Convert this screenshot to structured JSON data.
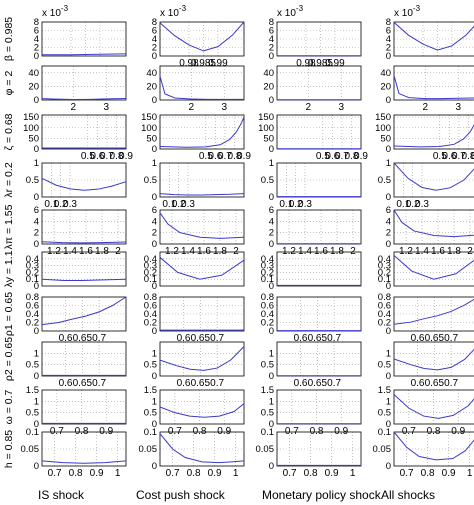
{
  "chart_data": {
    "type": "line",
    "grid": true,
    "line_color": "#3a3acc",
    "columns": [
      "IS shock",
      "Cost push shock",
      "Monetary policy shock",
      "All shocks"
    ],
    "exponent_label": "x 10",
    "exponent_power": "-3",
    "rows": [
      {
        "label": "β = 0.985",
        "x": [
          0.97,
          0.999
        ],
        "ylim": [
          0,
          8
        ],
        "yticks": [
          "0",
          "2",
          "4",
          "6",
          "8"
        ],
        "xticks": [
          "0.98",
          "0.985",
          "0.99"
        ],
        "xtick_values": [
          0.98,
          0.985,
          0.99
        ],
        "exponent_columns": [
          0,
          1,
          2,
          3
        ],
        "xticks_columns": [
          1,
          2
        ],
        "series": [
          {
            "x": [
              0.97,
              0.98,
              0.99,
              0.999
            ],
            "values": [
              0.3,
              0.3,
              0.4,
              0.5
            ]
          },
          {
            "x": [
              0.97,
              0.975,
              0.98,
              0.985,
              0.99,
              0.995,
              0.999
            ],
            "values": [
              7.8,
              4.8,
              2.6,
              1.2,
              2.2,
              4.9,
              8.0
            ]
          },
          {
            "x": [
              0.97,
              0.999
            ],
            "values": [
              0.05,
              0.05
            ]
          },
          {
            "x": [
              0.97,
              0.975,
              0.98,
              0.985,
              0.99,
              0.995,
              0.999
            ],
            "values": [
              7.9,
              4.9,
              2.8,
              1.4,
              2.4,
              5.0,
              8.0
            ]
          }
        ]
      },
      {
        "label": "φ = 2",
        "x": [
          1.05,
          3.6
        ],
        "ylim": [
          0,
          50
        ],
        "yticks": [
          "0",
          "20",
          "40"
        ],
        "xticks": [
          "1",
          "2",
          "3"
        ],
        "xtick_values": [
          1,
          2,
          3
        ],
        "xticks_columns": [
          0,
          1,
          2,
          3
        ],
        "series": [
          {
            "x": [
              1.05,
              1.5,
              2,
              2.5,
              3,
              3.6
            ],
            "values": [
              2,
              1.2,
              0.8,
              1,
              1.6,
              2.2
            ]
          },
          {
            "x": [
              1.05,
              1.2,
              1.5,
              2,
              2.5,
              3,
              3.6
            ],
            "values": [
              35,
              9,
              3,
              1.5,
              1,
              1,
              1
            ]
          },
          {
            "x": [
              1.05,
              3.6
            ],
            "values": [
              0.3,
              0.3
            ]
          },
          {
            "x": [
              1.05,
              1.2,
              1.5,
              2,
              2.5,
              3,
              3.6
            ],
            "values": [
              36,
              9.5,
              3.5,
              2,
              2,
              2.5,
              3
            ]
          }
        ]
      },
      {
        "label": "ζ = 0.68",
        "x": [
          0.02,
          0.9
        ],
        "ylim": [
          0,
          160
        ],
        "yticks": [
          "0",
          "50",
          "100",
          "150"
        ],
        "xticks": [
          "0.5",
          "0.6",
          "0.7",
          "0.8",
          "0.9"
        ],
        "xtick_values": [
          0.5,
          0.6,
          0.7,
          0.8,
          0.9
        ],
        "xticks_columns": [
          0,
          1,
          2,
          3
        ],
        "series": [
          {
            "x": [
              0.02,
              0.9
            ],
            "values": [
              5,
              5
            ]
          },
          {
            "x": [
              0.02,
              0.3,
              0.5,
              0.65,
              0.75,
              0.82,
              0.87,
              0.9
            ],
            "values": [
              12,
              8,
              10,
              20,
              45,
              80,
              120,
              150
            ]
          },
          {
            "x": [
              0.02,
              0.9
            ],
            "values": [
              1,
              1
            ]
          },
          {
            "x": [
              0.02,
              0.3,
              0.5,
              0.65,
              0.75,
              0.82,
              0.87,
              0.9
            ],
            "values": [
              14,
              10,
              12,
              22,
              48,
              82,
              122,
              152
            ]
          }
        ]
      },
      {
        "label": "λr = 0.2",
        "x": [
          0,
          0.9
        ],
        "ylim": [
          0,
          1
        ],
        "yticks": [
          "0",
          "0.5",
          "1"
        ],
        "xticks": [
          "0.1",
          "0.2",
          "0.3"
        ],
        "xtick_values": [
          0.1,
          0.2,
          0.3
        ],
        "xticks_columns": [
          0,
          1,
          2,
          3
        ],
        "series": [
          {
            "x": [
              0,
              0.15,
              0.3,
              0.45,
              0.6,
              0.75,
              0.9
            ],
            "values": [
              0.55,
              0.35,
              0.24,
              0.2,
              0.23,
              0.32,
              0.45
            ]
          },
          {
            "x": [
              0,
              0.15,
              0.3,
              0.45,
              0.6,
              0.75,
              0.9
            ],
            "values": [
              0.1,
              0.07,
              0.06,
              0.06,
              0.07,
              0.08,
              0.1
            ]
          },
          {
            "x": [
              0,
              0.9
            ],
            "values": [
              0.01,
              0.01
            ]
          },
          {
            "x": [
              0,
              0.15,
              0.3,
              0.45,
              0.6,
              0.75,
              0.9
            ],
            "values": [
              1.0,
              0.55,
              0.28,
              0.2,
              0.27,
              0.5,
              0.95
            ]
          }
        ]
      },
      {
        "label": "λπ = 1.55",
        "x": [
          1.05,
          2.1
        ],
        "ylim": [
          0,
          6
        ],
        "yticks": [
          "0",
          "2",
          "4",
          "6"
        ],
        "xticks": [
          "1.2",
          "1.4",
          "1.6",
          "1.8",
          "2"
        ],
        "xtick_values": [
          1.2,
          1.4,
          1.6,
          1.8,
          2
        ],
        "xticks_columns": [
          0,
          1,
          2,
          3
        ],
        "series": [
          {
            "x": [
              1.05,
              1.3,
              1.55,
              1.8,
              2.1
            ],
            "values": [
              0.4,
              0.25,
              0.2,
              0.25,
              0.35
            ]
          },
          {
            "x": [
              1.05,
              1.15,
              1.3,
              1.55,
              1.8,
              2.1
            ],
            "values": [
              5.5,
              3.5,
              2.0,
              1.2,
              1.0,
              1.2
            ]
          },
          {
            "x": [
              1.05,
              2.1
            ],
            "values": [
              0.05,
              0.05
            ]
          },
          {
            "x": [
              1.05,
              1.15,
              1.3,
              1.55,
              1.8,
              2.1
            ],
            "values": [
              6,
              3.8,
              2.3,
              1.5,
              1.3,
              1.6
            ]
          }
        ]
      },
      {
        "label": "λy = 1.1",
        "x": [
          0.6,
          2.5
        ],
        "ylim": [
          0,
          0.5
        ],
        "yticks": [
          "0",
          "0.1",
          "0.2",
          "0.3",
          "0.4"
        ],
        "xticks": [],
        "xtick_values": [],
        "series": [
          {
            "x": [
              0.6,
              1.1,
              1.5,
              2.0,
              2.5
            ],
            "values": [
              0.1,
              0.08,
              0.08,
              0.09,
              0.1
            ]
          },
          {
            "x": [
              0.6,
              1.0,
              1.5,
              2.0,
              2.5
            ],
            "values": [
              0.42,
              0.2,
              0.1,
              0.16,
              0.38
            ]
          },
          {
            "x": [
              0.6,
              2.5
            ],
            "values": [
              0.01,
              0.01
            ]
          },
          {
            "x": [
              0.6,
              1.0,
              1.5,
              2.0,
              2.5
            ],
            "values": [
              0.45,
              0.22,
              0.1,
              0.18,
              0.42
            ]
          }
        ]
      },
      {
        "label": "ρ1 = 0.65",
        "x": [
          0.53,
          0.78
        ],
        "ylim": [
          0,
          0.8
        ],
        "yticks": [
          "0",
          "0.2",
          "0.4",
          "0.6",
          "0.8"
        ],
        "xticks": [
          "0.6",
          "0.65",
          "0.7"
        ],
        "xtick_values": [
          0.6,
          0.65,
          0.7
        ],
        "xticks_columns": [
          0,
          1,
          2,
          3
        ],
        "series": [
          {
            "x": [
              0.53,
              0.58,
              0.62,
              0.66,
              0.7,
              0.74,
              0.78
            ],
            "values": [
              0.15,
              0.2,
              0.28,
              0.35,
              0.45,
              0.6,
              0.8
            ]
          },
          {
            "x": [
              0.53,
              0.78
            ],
            "values": [
              0.02,
              0.02
            ]
          },
          {
            "x": [
              0.53,
              0.78
            ],
            "values": [
              0.01,
              0.01
            ]
          },
          {
            "x": [
              0.53,
              0.58,
              0.62,
              0.66,
              0.7,
              0.74,
              0.78
            ],
            "values": [
              0.16,
              0.21,
              0.29,
              0.36,
              0.46,
              0.61,
              0.8
            ]
          }
        ]
      },
      {
        "label": "ρ2 = 0.65",
        "x": [
          0.53,
          0.78
        ],
        "ylim": [
          0,
          1.5
        ],
        "yticks": [
          "0",
          "0.5",
          "1"
        ],
        "xticks": [
          "0.6",
          "0.65",
          "0.7"
        ],
        "xtick_values": [
          0.6,
          0.65,
          0.7
        ],
        "xticks_columns": [
          0,
          1,
          2,
          3
        ],
        "series": [
          {
            "x": [
              0.53,
              0.78
            ],
            "values": [
              0.03,
              0.03
            ]
          },
          {
            "x": [
              0.53,
              0.58,
              0.62,
              0.66,
              0.7,
              0.74,
              0.78
            ],
            "values": [
              0.7,
              0.45,
              0.3,
              0.25,
              0.35,
              0.7,
              1.3
            ]
          },
          {
            "x": [
              0.53,
              0.78
            ],
            "values": [
              0.01,
              0.01
            ]
          },
          {
            "x": [
              0.53,
              0.58,
              0.62,
              0.66,
              0.7,
              0.74,
              0.78
            ],
            "values": [
              0.75,
              0.5,
              0.33,
              0.27,
              0.38,
              0.73,
              1.35
            ]
          }
        ]
      },
      {
        "label": "ω = 0.7",
        "x": [
          0.64,
          0.98
        ],
        "ylim": [
          0,
          1.5
        ],
        "yticks": [
          "0",
          "0.5",
          "1",
          "1.5"
        ],
        "xticks": [
          "0.7",
          "0.8",
          "0.9"
        ],
        "xtick_values": [
          0.7,
          0.8,
          0.9
        ],
        "xticks_columns": [
          0,
          1,
          2,
          3
        ],
        "series": [
          {
            "x": [
              0.64,
              0.98
            ],
            "values": [
              0.03,
              0.03
            ]
          },
          {
            "x": [
              0.64,
              0.7,
              0.76,
              0.82,
              0.88,
              0.94,
              0.98
            ],
            "values": [
              0.75,
              0.5,
              0.35,
              0.3,
              0.35,
              0.55,
              0.9
            ]
          },
          {
            "x": [
              0.64,
              0.98
            ],
            "values": [
              0.01,
              0.01
            ]
          },
          {
            "x": [
              0.64,
              0.7,
              0.76,
              0.82,
              0.88,
              0.94,
              0.98
            ],
            "values": [
              1.3,
              0.7,
              0.35,
              0.25,
              0.38,
              0.8,
              1.3
            ]
          }
        ]
      },
      {
        "label": "h = 0.85",
        "x": [
          0.64,
          1.04
        ],
        "ylim": [
          0,
          0.1
        ],
        "yticks": [
          "0",
          "0.05",
          "0.1"
        ],
        "xticks": [
          "0.7",
          "0.8",
          "0.9",
          "1"
        ],
        "xtick_values": [
          0.7,
          0.8,
          0.9,
          1
        ],
        "xticks_columns": [
          0,
          1,
          2,
          3
        ],
        "series": [
          {
            "x": [
              0.64,
              0.74,
              0.84,
              0.94,
              1.04
            ],
            "values": [
              0.015,
              0.01,
              0.008,
              0.01,
              0.015
            ]
          },
          {
            "x": [
              0.64,
              0.7,
              0.76,
              0.84,
              0.92,
              0.98,
              1.04
            ],
            "values": [
              0.095,
              0.05,
              0.025,
              0.012,
              0.01,
              0.012,
              0.015
            ]
          },
          {
            "x": [
              0.64,
              1.04
            ],
            "values": [
              0.002,
              0.002
            ]
          },
          {
            "x": [
              0.64,
              0.7,
              0.76,
              0.84,
              0.92,
              0.98,
              1.04
            ],
            "values": [
              0.1,
              0.055,
              0.028,
              0.018,
              0.022,
              0.045,
              0.09
            ]
          }
        ]
      }
    ]
  }
}
